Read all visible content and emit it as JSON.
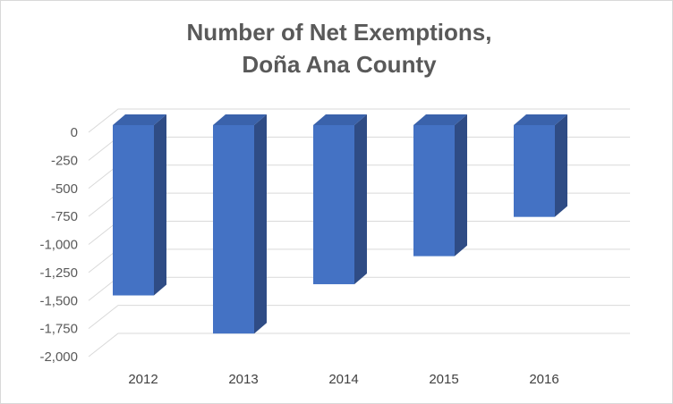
{
  "chart_data": {
    "type": "bar",
    "style": "3d-column",
    "title": "Number of Net Exemptions, Doña Ana County",
    "title_lines": [
      "Number of Net Exemptions,",
      "Doña Ana County"
    ],
    "categories": [
      "2012",
      "2013",
      "2014",
      "2015",
      "2016"
    ],
    "series": [
      {
        "name": "Net Exemptions",
        "values": [
          -1550,
          -1890,
          -1450,
          -1200,
          -850
        ]
      }
    ],
    "ylim": [
      -2000,
      0
    ],
    "y_ticks": [
      0,
      -250,
      -500,
      -750,
      -1000,
      -1250,
      -1500,
      -1750,
      -2000
    ],
    "y_tick_labels": [
      "0",
      "-250",
      "-500",
      "-750",
      "-1,000",
      "-1,250",
      "-1,500",
      "-1,750",
      "-2,000"
    ],
    "xlabel": "",
    "ylabel": "",
    "grid": true,
    "legend": "none",
    "colors": {
      "bar_front": "#4472c4",
      "bar_side": "#2f4c85",
      "bar_top": "#3a62ab",
      "gridline": "#d9d9d9",
      "text": "#595959",
      "frame": "#d9d9d9"
    }
  }
}
